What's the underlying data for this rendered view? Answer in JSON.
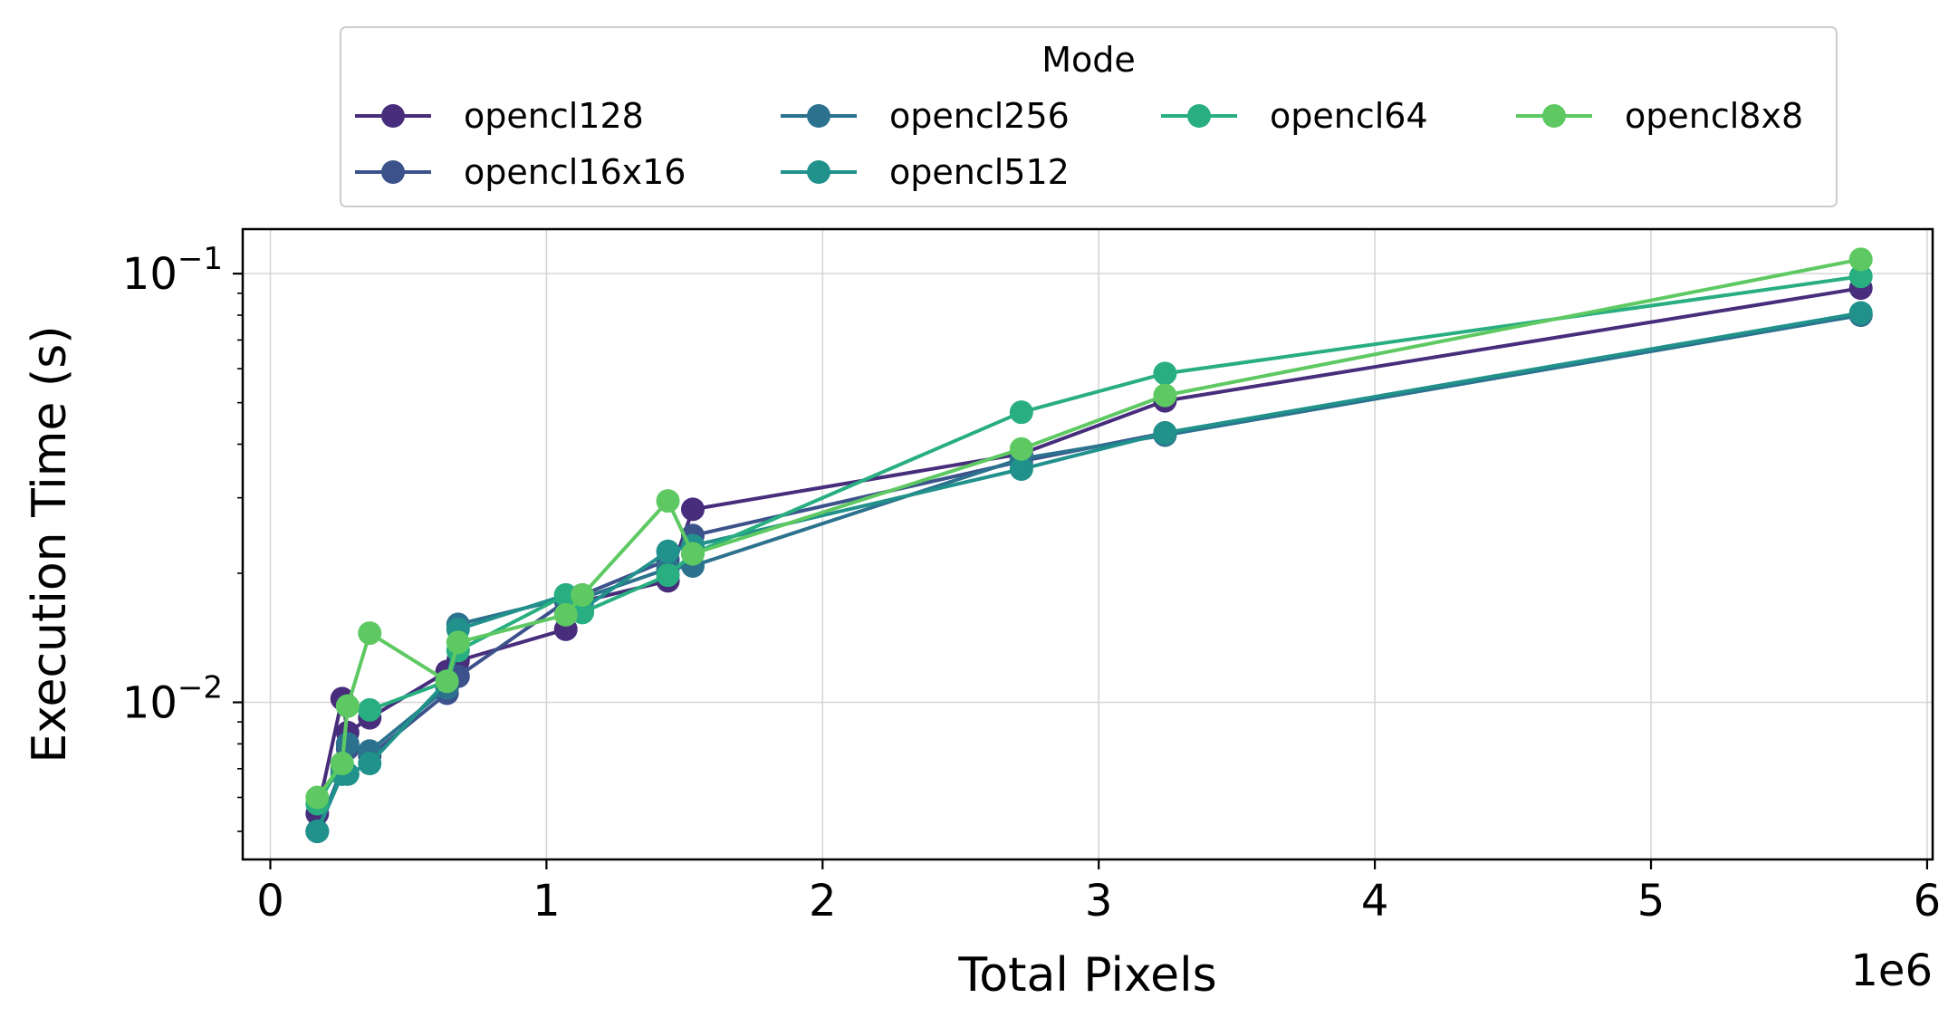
{
  "chart_data": {
    "type": "line",
    "xlabel": "Total Pixels",
    "ylabel": "Execution Time (s)",
    "x_offset_label": "1e6",
    "x_tick_values": [
      0,
      1,
      2,
      3,
      4,
      5,
      6
    ],
    "x_tick_labels": [
      "0",
      "1",
      "2",
      "3",
      "4",
      "5",
      "6"
    ],
    "y_ticks": [
      {
        "value": 0.01,
        "base": "10",
        "exp": "−2"
      },
      {
        "value": 0.1,
        "base": "10",
        "exp": "−1"
      }
    ],
    "xlim": [
      -0.1,
      6.02
    ],
    "ylim": [
      0.0043,
      0.127
    ],
    "y_scale": "log",
    "grid": true,
    "legend": {
      "title": "Mode",
      "placement": "above plot, 4 columns"
    },
    "x": [
      0.17,
      0.26,
      0.28,
      0.36,
      0.64,
      0.68,
      1.07,
      1.13,
      1.44,
      1.53,
      2.72,
      3.24,
      5.76
    ],
    "series": [
      {
        "name": "opencl128",
        "color": "#472d7b",
        "values": [
          0.0055,
          0.0102,
          0.0085,
          0.0092,
          0.0118,
          0.0125,
          0.0148,
          0.0172,
          0.0192,
          0.0282,
          0.038,
          0.0505,
          0.0925
        ]
      },
      {
        "name": "opencl16x16",
        "color": "#3b528b",
        "values": [
          0.005,
          0.0068,
          0.0078,
          0.0075,
          0.0105,
          0.0115,
          0.0172,
          0.0178,
          0.0215,
          0.0245,
          0.0365,
          0.0425,
          0.08
        ]
      },
      {
        "name": "opencl256",
        "color": "#2c728e",
        "values": [
          0.005,
          0.007,
          0.008,
          0.0077,
          0.0108,
          0.0152,
          0.0175,
          0.0175,
          0.0205,
          0.0208,
          0.037,
          0.042,
          0.08
        ]
      },
      {
        "name": "opencl512",
        "color": "#21918c",
        "values": [
          0.005,
          0.0068,
          0.0068,
          0.0072,
          0.0112,
          0.0148,
          0.0178,
          0.0165,
          0.0225,
          0.0232,
          0.035,
          0.0425,
          0.081
        ]
      },
      {
        "name": "opencl64",
        "color": "#28ae80",
        "values": [
          0.0058,
          0.0072,
          0.0098,
          0.0096,
          0.0112,
          0.0132,
          0.0178,
          0.0162,
          0.0198,
          0.0222,
          0.0475,
          0.0585,
          0.0985
        ]
      },
      {
        "name": "opencl8x8",
        "color": "#5ec962",
        "values": [
          0.006,
          0.0072,
          0.0098,
          0.0145,
          0.0112,
          0.0138,
          0.016,
          0.0178,
          0.0295,
          0.0222,
          0.039,
          0.052,
          0.108
        ]
      }
    ]
  }
}
